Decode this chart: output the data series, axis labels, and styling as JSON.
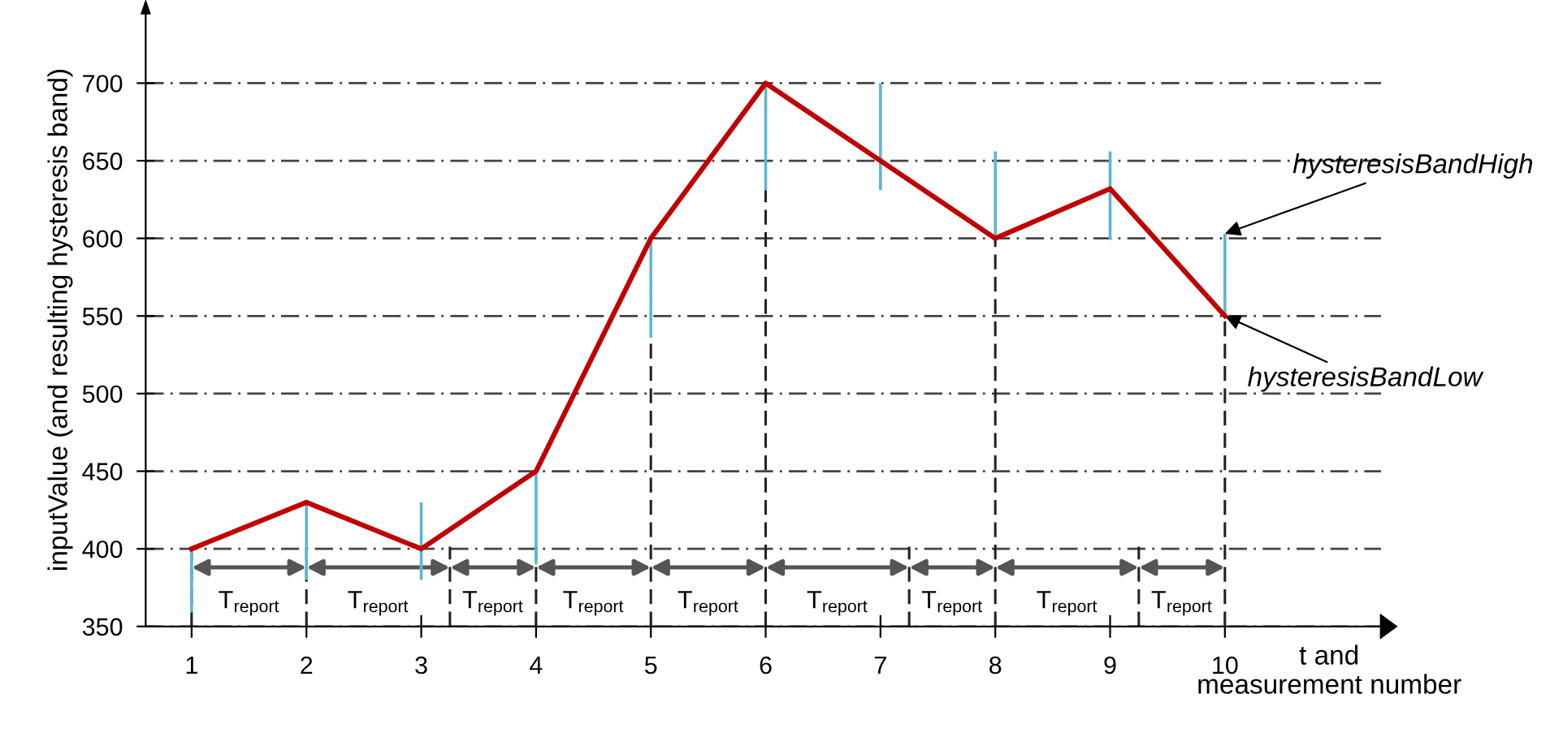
{
  "chart_data": {
    "type": "line",
    "x": [
      1,
      2,
      3,
      4,
      5,
      6,
      7,
      8,
      9,
      10
    ],
    "series": [
      {
        "color": "#c00000",
        "values": [
          400,
          430,
          400,
          450,
          600,
          700,
          650,
          600,
          632,
          550
        ],
        "errors": [
          [
            359,
            400
          ],
          [
            380,
            430
          ],
          [
            380,
            430
          ],
          [
            390,
            450
          ],
          [
            536,
            600
          ],
          [
            631,
            700
          ],
          [
            631,
            700
          ],
          [
            600,
            656
          ],
          [
            599,
            656
          ],
          [
            550,
            603
          ]
        ]
      }
    ],
    "xlabel": "t and\nmeasurement number",
    "ylabel": "inputValue (and resulting hysteresis band)",
    "xlim": [
      0.6,
      11.36
    ],
    "xticks": [
      1,
      2,
      3,
      4,
      5,
      6,
      7,
      8,
      9,
      10
    ],
    "ylim": [
      350,
      745
    ],
    "yticks": [
      350,
      400,
      450,
      500,
      550,
      600,
      650,
      700
    ],
    "grid": "y",
    "marker": "none",
    "line_style": "solid",
    "ref_lines": [
      {
        "axis": "x",
        "value": 1,
        "line_style": "dashed",
        "color": "#222222"
      },
      {
        "axis": "x",
        "value": 2,
        "line_style": "dashed",
        "color": "#222222"
      },
      {
        "axis": "x",
        "value": 3.25,
        "line_style": "dashed",
        "color": "#222222"
      },
      {
        "axis": "x",
        "value": 4,
        "line_style": "dashed",
        "color": "#222222"
      },
      {
        "axis": "x",
        "value": 5,
        "line_style": "dashed",
        "color": "#222222"
      },
      {
        "axis": "x",
        "value": 6,
        "line_style": "dashed",
        "color": "#222222"
      },
      {
        "axis": "x",
        "value": 7.25,
        "line_style": "dashed",
        "color": "#222222"
      },
      {
        "axis": "x",
        "value": 8,
        "line_style": "dashed",
        "color": "#222222"
      },
      {
        "axis": "x",
        "value": 9.25,
        "line_style": "dashed",
        "color": "#222222"
      },
      {
        "axis": "x",
        "value": 10,
        "line_style": "dashed",
        "color": "#222222"
      }
    ],
    "annotations": [
      {
        "text": "T$_{report}$",
        "x": 1,
        "y": 388
      },
      {
        "text": "T$_{report}$",
        "x": 2,
        "y": 388
      },
      {
        "text": "T$_{report}$",
        "x": 3.25,
        "y": 388
      },
      {
        "text": "T$_{report}$",
        "x": 4,
        "y": 388
      },
      {
        "text": "T$_{report}$",
        "x": 5,
        "y": 388
      },
      {
        "text": "T$_{report}$",
        "x": 6,
        "y": 388
      },
      {
        "text": "T$_{report}$",
        "x": 7.25,
        "y": 388
      },
      {
        "text": "T$_{report}$",
        "x": 8,
        "y": 388
      },
      {
        "text": "T$_{report}$",
        "x": 9.25,
        "y": 388
      },
      {
        "text": "hysteresisBandHigh",
        "x": 10,
        "y": 603
      },
      {
        "text": "hysteresisBandLow",
        "x": 10,
        "y": 550
      }
    ]
  }
}
